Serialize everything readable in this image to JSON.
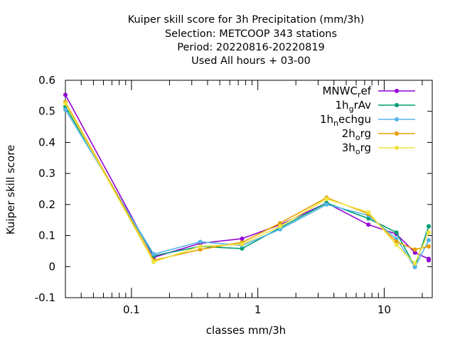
{
  "title_lines": [
    "Kuiper skill score  for 3h Precipitation (mm/3h)",
    "Selection: METCOOP    343 stations",
    "Period: 20220816-20220819",
    "Used  All hours  + 03-00"
  ],
  "chart_data": {
    "type": "line",
    "xlabel": "classes mm/3h",
    "ylabel": "Kuiper skill score",
    "xscale": "log",
    "xlim": [
      0.03,
      24
    ],
    "ylim": [
      -0.1,
      0.6
    ],
    "x_ticks": [
      "0.1",
      "1",
      "10"
    ],
    "y_ticks": [
      "-0.1",
      "0",
      "0.1",
      "0.2",
      "0.3",
      "0.4",
      "0.5",
      "0.6"
    ],
    "x": [
      0.03,
      0.15,
      0.35,
      0.75,
      1.5,
      3.5,
      7.5,
      12.5,
      17.5,
      22.5,
      22.5
    ],
    "series": [
      {
        "name": "MNWC_ref",
        "name_parts": [
          [
            "MNWC",
            false
          ],
          [
            "r",
            true
          ],
          [
            "ef",
            false
          ]
        ],
        "color": "#9400d3",
        "values": [
          0.553,
          0.03,
          0.075,
          0.09,
          0.135,
          0.205,
          0.135,
          0.105,
          0.045,
          0.025,
          0.02
        ]
      },
      {
        "name": "1h_grAv",
        "name_parts": [
          [
            "1h",
            false
          ],
          [
            "g",
            true
          ],
          [
            "rAv",
            false
          ]
        ],
        "color": "#009e73",
        "values": [
          0.515,
          0.035,
          0.065,
          0.058,
          0.125,
          0.205,
          0.155,
          0.11,
          0.0,
          0.13,
          0.13
        ]
      },
      {
        "name": "1h_nechgu",
        "name_parts": [
          [
            "1h",
            false
          ],
          [
            "n",
            true
          ],
          [
            "echgu",
            false
          ]
        ],
        "color": "#56b4e9",
        "values": [
          0.505,
          0.04,
          0.08,
          0.068,
          0.12,
          0.2,
          0.165,
          0.09,
          -0.002,
          0.085,
          0.085
        ]
      },
      {
        "name": "2h_org",
        "name_parts": [
          [
            "2h",
            false
          ],
          [
            "o",
            true
          ],
          [
            "rg",
            false
          ]
        ],
        "color": "#e69f00",
        "values": [
          0.53,
          0.02,
          0.055,
          0.078,
          0.14,
          0.222,
          0.17,
          0.08,
          0.055,
          0.065,
          0.065
        ]
      },
      {
        "name": "3h_org",
        "name_parts": [
          [
            "3h",
            false
          ],
          [
            "o",
            true
          ],
          [
            "rg",
            false
          ]
        ],
        "color": "#f0e442",
        "values": [
          0.525,
          0.015,
          0.065,
          0.072,
          0.13,
          0.218,
          0.175,
          0.07,
          0.01,
          0.11,
          0.11
        ]
      }
    ],
    "grid": false,
    "legend_position": "top-right"
  }
}
